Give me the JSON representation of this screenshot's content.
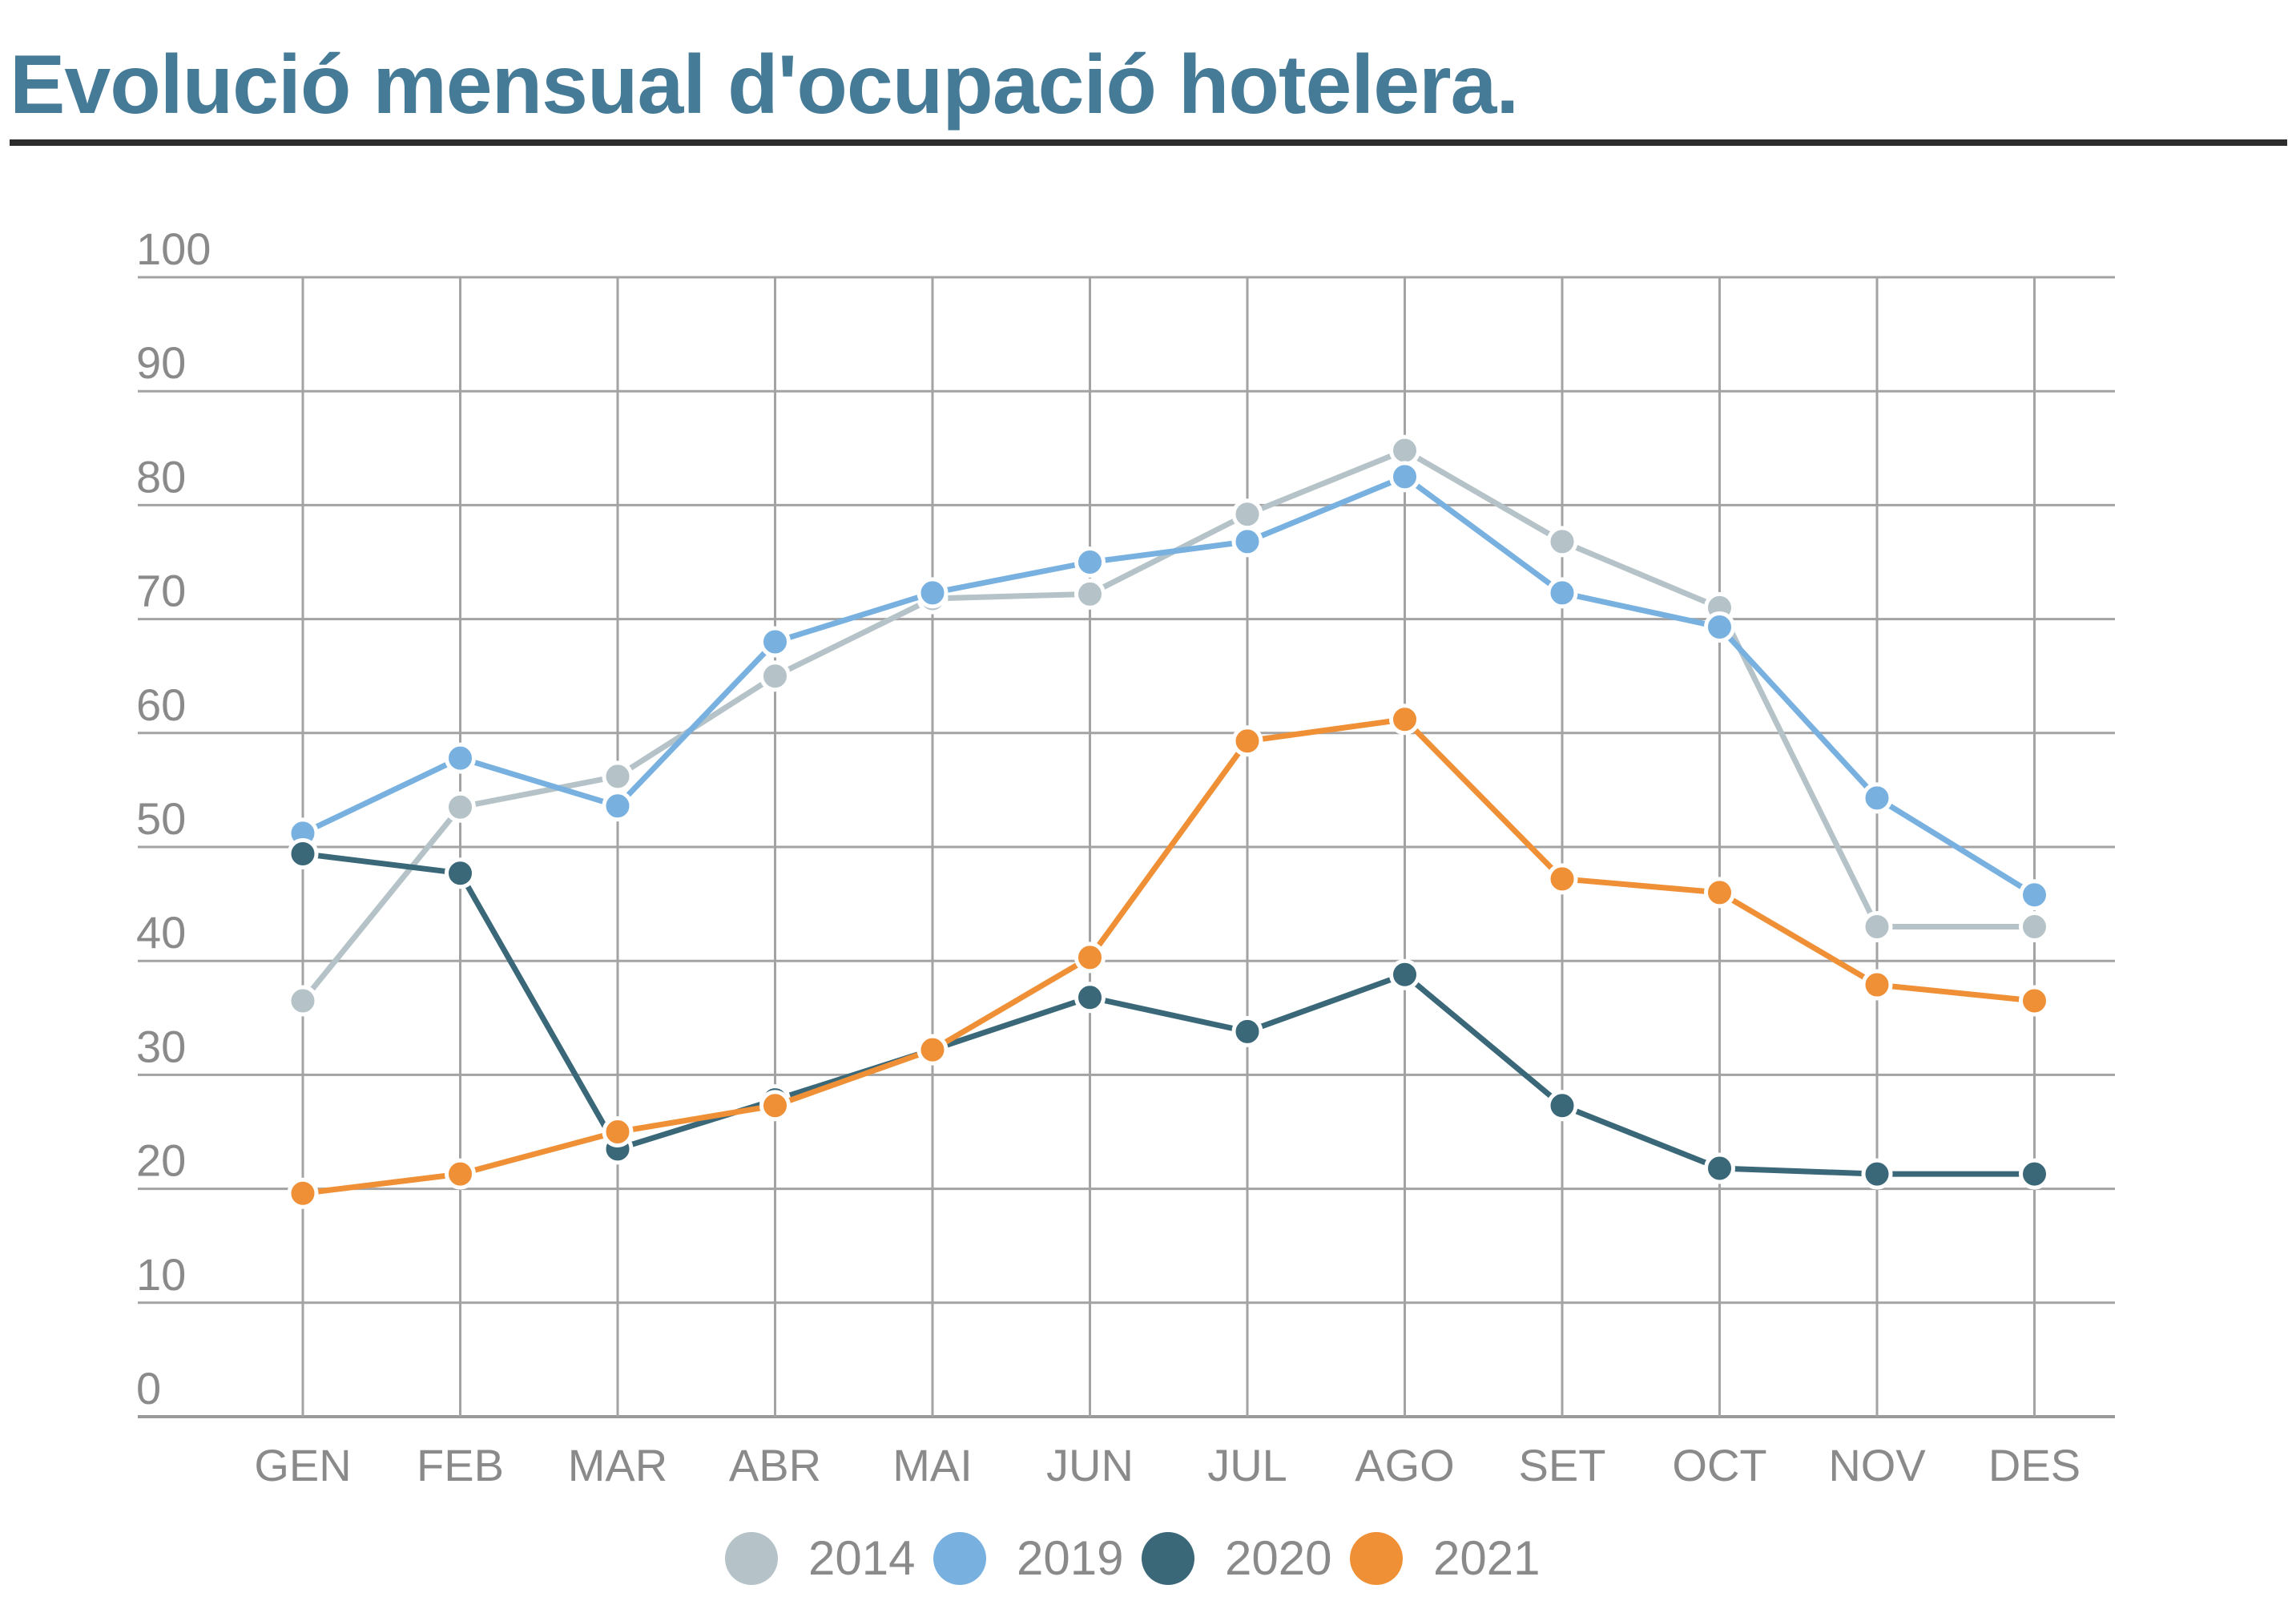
{
  "title": "Evolució mensual d'ocupació hotelera.",
  "chart_data": {
    "type": "line",
    "title": "Evolució mensual d'ocupació hotelera.",
    "categories": [
      "GEN",
      "FEB",
      "MAR",
      "ABR",
      "MAI",
      "JUN",
      "JUL",
      "AGO",
      "SET",
      "OCT",
      "NOV",
      "DES"
    ],
    "yticks": [
      "0",
      "10",
      "20",
      "30",
      "40",
      "50",
      "60",
      "70",
      "80",
      "90",
      "100"
    ],
    "ylim": [
      0,
      100
    ],
    "grid": true,
    "legend_position": "bottom-center",
    "series": [
      {
        "name": "2014",
        "color": "#b5c3c8",
        "values": [
          36.5,
          53.5,
          56.2,
          65.0,
          71.8,
          72.2,
          79.2,
          84.8,
          76.8,
          71.0,
          43.0,
          43.0
        ]
      },
      {
        "name": "2019",
        "color": "#78b1e0",
        "values": [
          51.2,
          57.8,
          53.6,
          68.0,
          72.3,
          75.0,
          76.8,
          82.5,
          72.3,
          69.3,
          54.3,
          45.8
        ]
      },
      {
        "name": "2020",
        "color": "#3a6878",
        "values": [
          49.4,
          47.7,
          23.5,
          27.8,
          32.2,
          36.8,
          33.8,
          38.8,
          27.3,
          21.8,
          21.3,
          21.3
        ]
      },
      {
        "name": "2021",
        "color": "#ef9036",
        "values": [
          19.6,
          21.3,
          25.0,
          27.3,
          32.2,
          40.3,
          59.3,
          61.2,
          47.2,
          46.0,
          37.9,
          36.5
        ]
      }
    ]
  }
}
